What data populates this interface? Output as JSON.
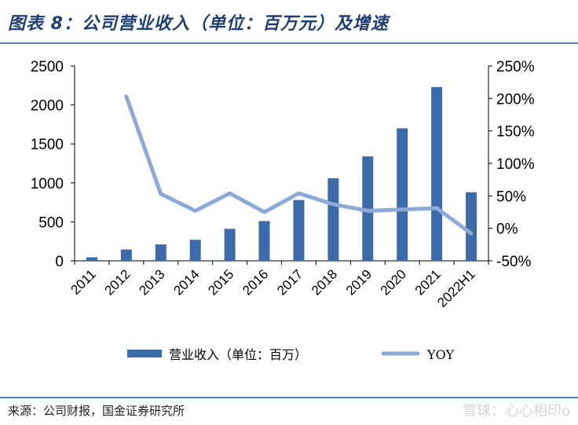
{
  "header": {
    "title": "图表 8：公司营业收入（单位：百万元）及增速"
  },
  "footer": {
    "source": "来源：公司财报，国金证券研究所",
    "watermark": "雪球：心心相印o"
  },
  "chart_data": {
    "type": "bar",
    "title": "图表 8：公司营业收入（单位：百万元）及增速",
    "categories": [
      "2011",
      "2012",
      "2013",
      "2014",
      "2015",
      "2016",
      "2017",
      "2018",
      "2019",
      "2020",
      "2021",
      "2022H1"
    ],
    "series": [
      {
        "name": "营业收入（单位：百万）",
        "type": "bar",
        "axis": "left",
        "color": "#3d6aaa",
        "values": [
          45,
          145,
          210,
          270,
          410,
          510,
          780,
          1060,
          1340,
          1700,
          2230,
          880
        ]
      },
      {
        "name": "YOY",
        "type": "line",
        "axis": "right",
        "color": "#8ea9d6",
        "values": [
          null,
          2.03,
          0.53,
          0.27,
          0.54,
          0.25,
          0.54,
          0.37,
          0.27,
          0.29,
          0.31,
          -0.08
        ]
      }
    ],
    "y_left": {
      "min": 0,
      "max": 2500,
      "ticks": [
        0,
        500,
        1000,
        1500,
        2000,
        2500
      ],
      "tick_labels": [
        "0",
        "500",
        "1000",
        "1500",
        "2000",
        "2500"
      ]
    },
    "y_right": {
      "min": -0.5,
      "max": 2.5,
      "ticks": [
        -0.5,
        0,
        0.5,
        1.0,
        1.5,
        2.0,
        2.5
      ],
      "tick_labels": [
        "-50%",
        "0%",
        "50%",
        "100%",
        "150%",
        "200%",
        "250%"
      ]
    },
    "legend_position": "bottom",
    "grid": false
  }
}
